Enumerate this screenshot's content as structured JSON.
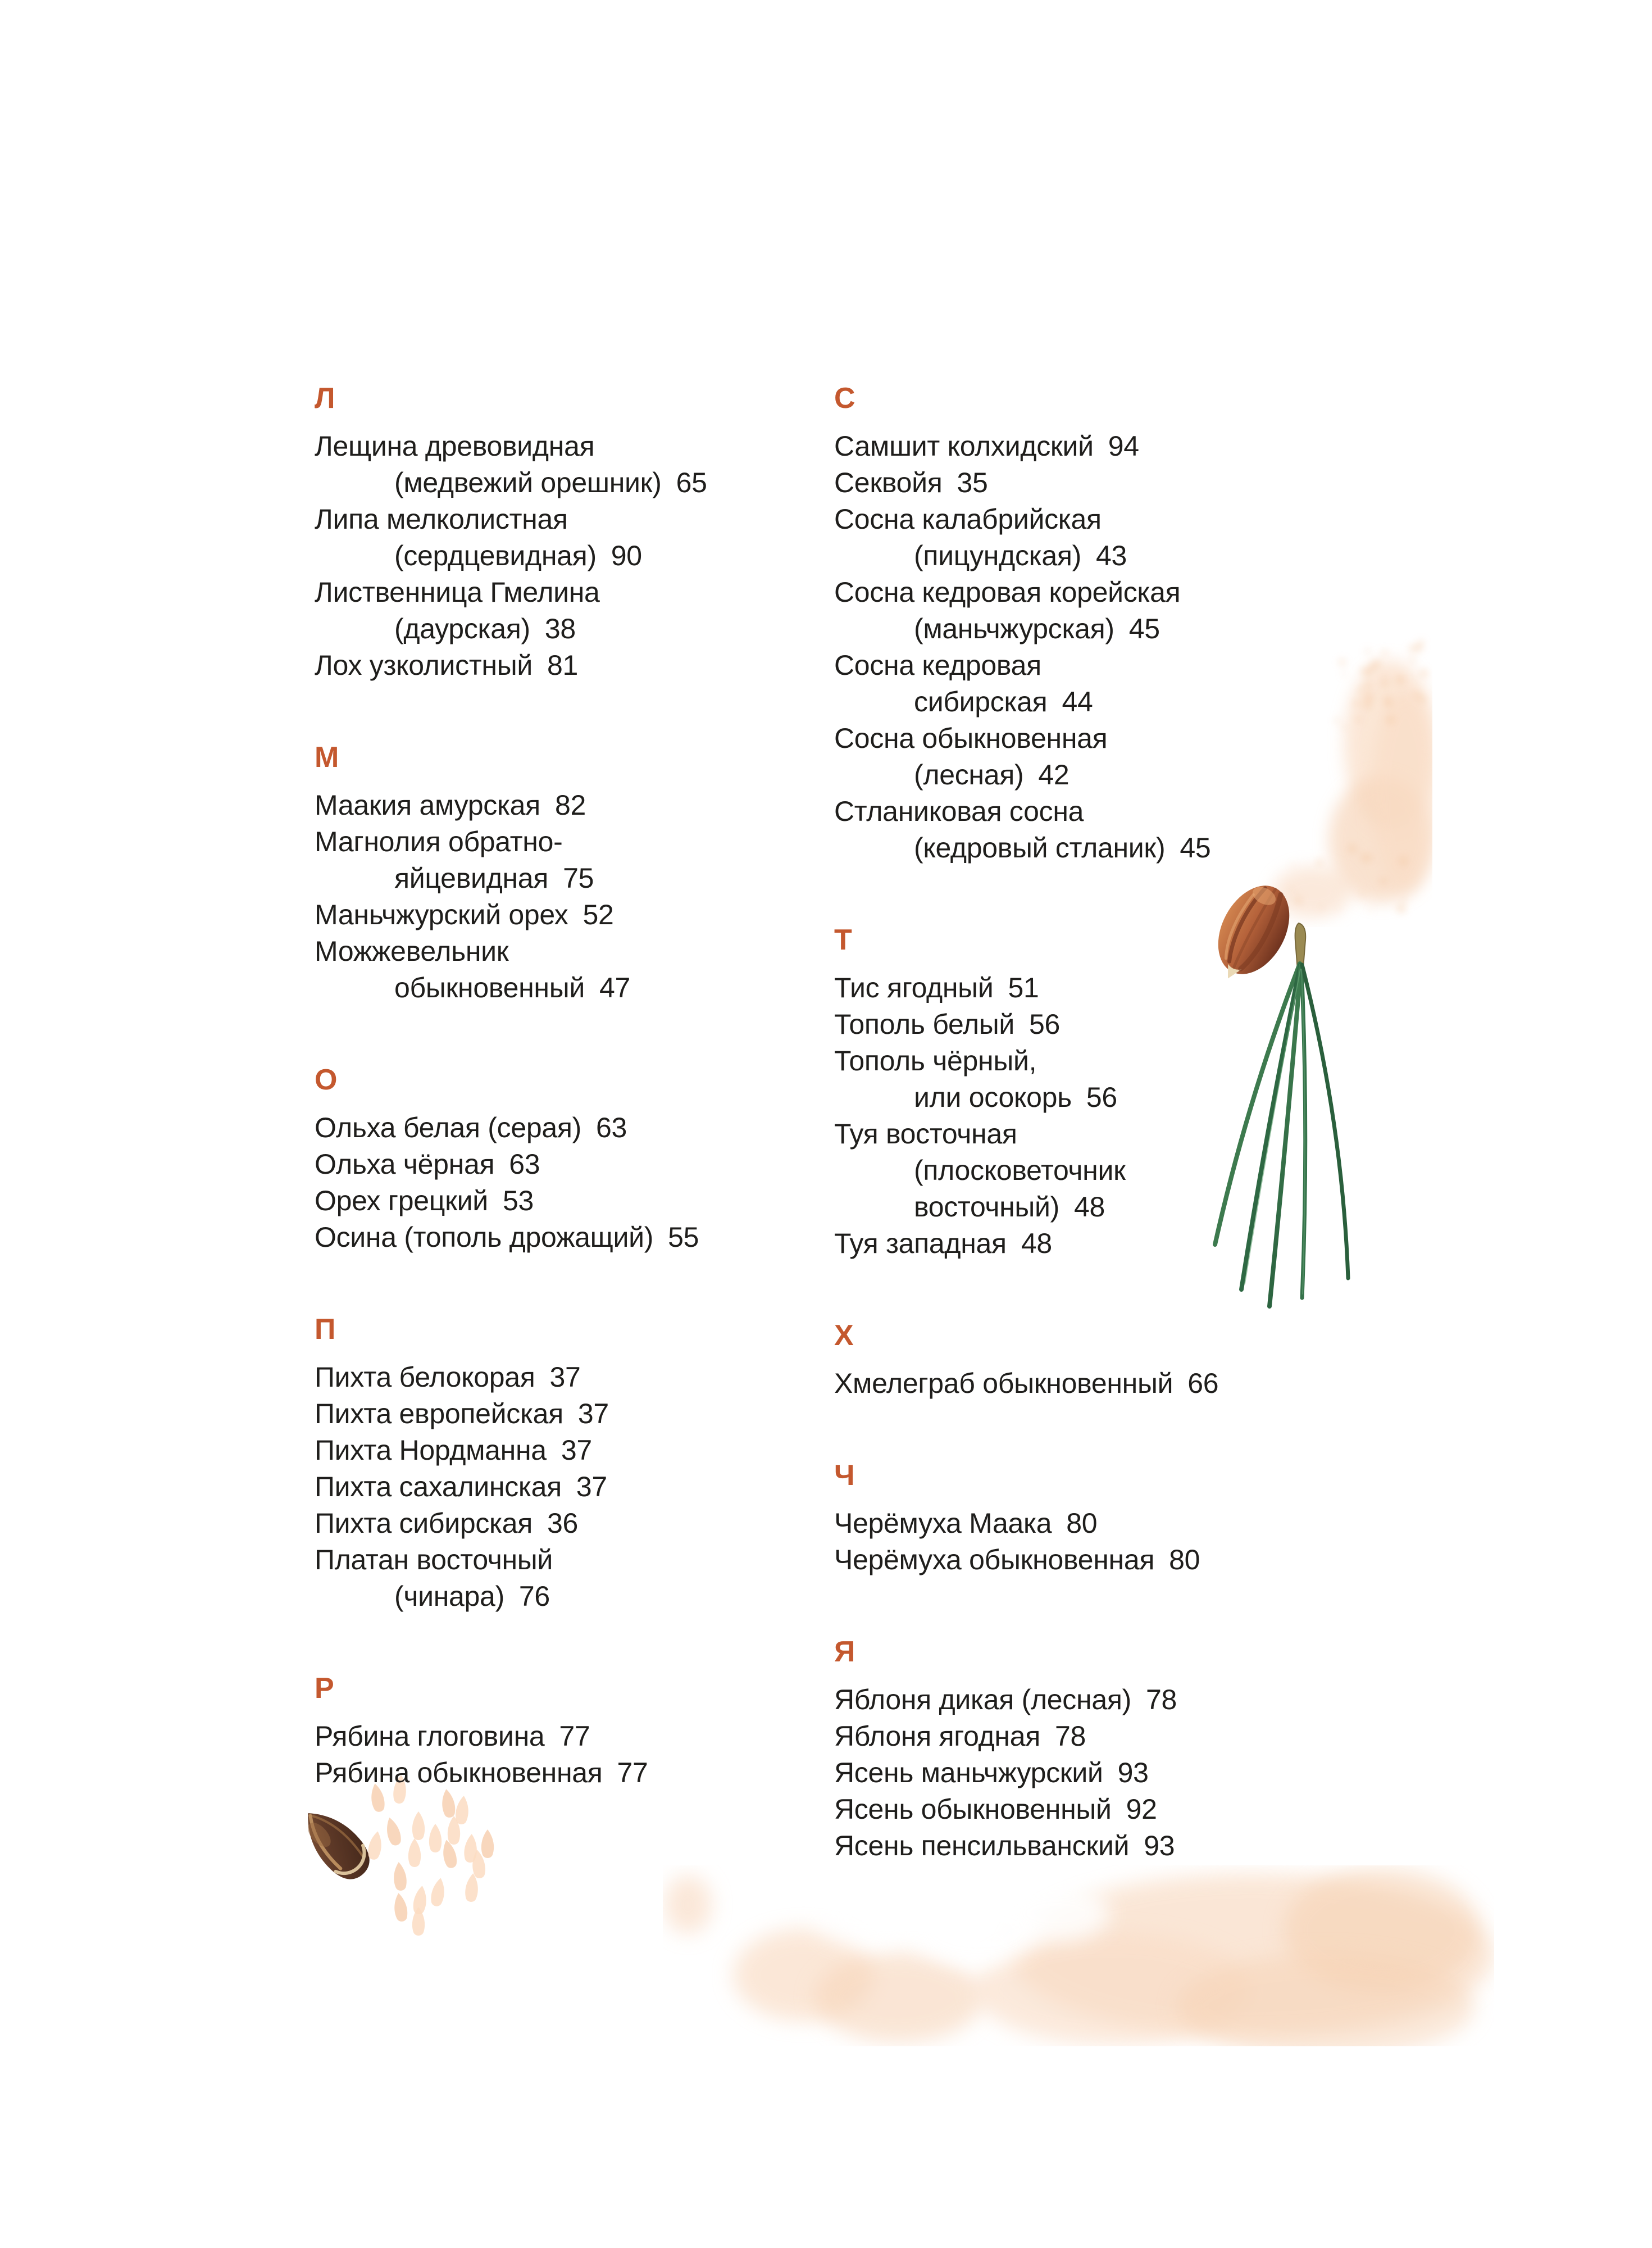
{
  "page": {
    "background": "#ffffff",
    "accent_color": "#c4582e",
    "text_color": "#1f1e1c"
  },
  "index": {
    "left_column": [
      {
        "letter": "Л",
        "lines": [
          {
            "text": "Лещина древовидная",
            "page": "",
            "indent": false
          },
          {
            "text": "(медвежий орешник)",
            "page": "65",
            "indent": true
          },
          {
            "text": "Липа мелколистная",
            "page": "",
            "indent": false
          },
          {
            "text": "(сердцевидная)",
            "page": "90",
            "indent": true
          },
          {
            "text": "Лиственница Гмелина",
            "page": "",
            "indent": false
          },
          {
            "text": "(даурская)",
            "page": "38",
            "indent": true
          },
          {
            "text": "Лох узколистный",
            "page": "81",
            "indent": false
          }
        ]
      },
      {
        "letter": "М",
        "lines": [
          {
            "text": "Маакия амурская",
            "page": "82",
            "indent": false
          },
          {
            "text": "Магнолия обратно-",
            "page": "",
            "indent": false
          },
          {
            "text": "яйцевидная",
            "page": "75",
            "indent": true
          },
          {
            "text": "Маньчжурский орех",
            "page": "52",
            "indent": false
          },
          {
            "text": "Можжевельник",
            "page": "",
            "indent": false
          },
          {
            "text": "обыкновенный",
            "page": "47",
            "indent": true
          }
        ]
      },
      {
        "letter": "О",
        "lines": [
          {
            "text": "Ольха белая (серая)",
            "page": "63",
            "indent": false
          },
          {
            "text": "Ольха чёрная",
            "page": "63",
            "indent": false
          },
          {
            "text": "Орех грецкий",
            "page": "53",
            "indent": false
          },
          {
            "text": "Осина (тополь дрожащий)",
            "page": "55",
            "indent": false
          }
        ]
      },
      {
        "letter": "П",
        "lines": [
          {
            "text": "Пихта белокорая",
            "page": "37",
            "indent": false
          },
          {
            "text": "Пихта европейская",
            "page": "37",
            "indent": false
          },
          {
            "text": "Пихта Нордманна",
            "page": "37",
            "indent": false
          },
          {
            "text": "Пихта сахалинская",
            "page": "37",
            "indent": false
          },
          {
            "text": "Пихта сибирская",
            "page": "36",
            "indent": false
          },
          {
            "text": "Платан восточный",
            "page": "",
            "indent": false
          },
          {
            "text": "(чинара)",
            "page": "76",
            "indent": true
          }
        ]
      },
      {
        "letter": "Р",
        "lines": [
          {
            "text": "Рябина глоговина",
            "page": "77",
            "indent": false
          },
          {
            "text": "Рябина обыкновенная",
            "page": "77",
            "indent": false
          }
        ]
      }
    ],
    "right_column": [
      {
        "letter": "С",
        "lines": [
          {
            "text": "Самшит колхидский",
            "page": "94",
            "indent": false
          },
          {
            "text": "Секвойя",
            "page": "35",
            "indent": false
          },
          {
            "text": "Сосна калабрийская",
            "page": "",
            "indent": false
          },
          {
            "text": "(пицундская)",
            "page": "43",
            "indent": true
          },
          {
            "text": "Сосна кедровая корейская",
            "page": "",
            "indent": false
          },
          {
            "text": "(маньчжурская)",
            "page": "45",
            "indent": true
          },
          {
            "text": "Сосна кедровая",
            "page": "",
            "indent": false
          },
          {
            "text": "сибирская",
            "page": "44",
            "indent": true
          },
          {
            "text": "Сосна обыкновенная",
            "page": "",
            "indent": false
          },
          {
            "text": "(лесная)",
            "page": "42",
            "indent": true
          },
          {
            "text": "Стланиковая сосна",
            "page": "",
            "indent": false
          },
          {
            "text": "(кедровый стланик)",
            "page": "45",
            "indent": true
          }
        ]
      },
      {
        "letter": "Т",
        "lines": [
          {
            "text": "Тис ягодный",
            "page": "51",
            "indent": false
          },
          {
            "text": "Тополь белый",
            "page": "56",
            "indent": false
          },
          {
            "text": "Тополь чёрный,",
            "page": "",
            "indent": false
          },
          {
            "text": "или осокорь",
            "page": "56",
            "indent": true
          },
          {
            "text": "Туя восточная",
            "page": "",
            "indent": false
          },
          {
            "text": "(плосковеточник",
            "page": "",
            "indent": true
          },
          {
            "text": "восточный)",
            "page": "48",
            "indent": true
          },
          {
            "text": "Туя западная",
            "page": "48",
            "indent": false
          }
        ]
      },
      {
        "letter": "Х",
        "lines": [
          {
            "text": "Хмелеграб обыкновенный",
            "page": "66",
            "indent": false
          }
        ]
      },
      {
        "letter": "Ч",
        "lines": [
          {
            "text": "Черёмуха Маака",
            "page": "80",
            "indent": false
          },
          {
            "text": "Черёмуха обыкновенная",
            "page": "80",
            "indent": false
          }
        ]
      },
      {
        "letter": "Я",
        "lines": [
          {
            "text": "Яблоня дикая (лесная)",
            "page": "78",
            "indent": false
          },
          {
            "text": "Яблоня ягодная",
            "page": "78",
            "indent": false
          },
          {
            "text": "Ясень маньчжурский",
            "page": "93",
            "indent": false
          },
          {
            "text": "Ясень обыкновенный",
            "page": "92",
            "indent": false
          },
          {
            "text": "Ясень пенсильванский",
            "page": "93",
            "indent": false
          }
        ]
      }
    ]
  },
  "illustrations": [
    {
      "name": "pine-nut-with-needles-illustration"
    },
    {
      "name": "brown-seed-illustration"
    },
    {
      "name": "pale-seed-scatter-decoration"
    },
    {
      "name": "watercolor-wash-top-right"
    },
    {
      "name": "watercolor-wash-bottom"
    }
  ]
}
